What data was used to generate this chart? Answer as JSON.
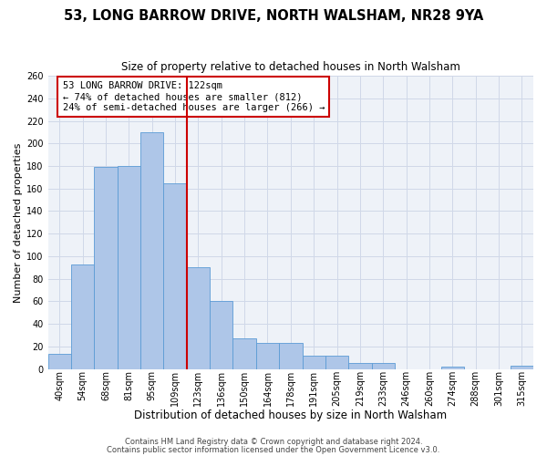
{
  "title": "53, LONG BARROW DRIVE, NORTH WALSHAM, NR28 9YA",
  "subtitle": "Size of property relative to detached houses in North Walsham",
  "xlabel": "Distribution of detached houses by size in North Walsham",
  "ylabel": "Number of detached properties",
  "bin_labels": [
    "40sqm",
    "54sqm",
    "68sqm",
    "81sqm",
    "95sqm",
    "109sqm",
    "123sqm",
    "136sqm",
    "150sqm",
    "164sqm",
    "178sqm",
    "191sqm",
    "205sqm",
    "219sqm",
    "233sqm",
    "246sqm",
    "260sqm",
    "274sqm",
    "288sqm",
    "301sqm",
    "315sqm"
  ],
  "bar_heights": [
    13,
    93,
    179,
    180,
    210,
    165,
    90,
    60,
    27,
    23,
    23,
    12,
    12,
    5,
    5,
    0,
    0,
    2,
    0,
    0,
    3
  ],
  "bar_color": "#aec6e8",
  "bar_edgecolor": "#5b9bd5",
  "grid_color": "#d0d8e8",
  "background_color": "#eef2f8",
  "vline_x": 6,
  "vline_color": "#cc0000",
  "annotation_text": "53 LONG BARROW DRIVE: 122sqm\n← 74% of detached houses are smaller (812)\n24% of semi-detached houses are larger (266) →",
  "annotation_box_edgecolor": "#cc0000",
  "ylim": [
    0,
    260
  ],
  "yticks": [
    0,
    20,
    40,
    60,
    80,
    100,
    120,
    140,
    160,
    180,
    200,
    220,
    240,
    260
  ],
  "footer1": "Contains HM Land Registry data © Crown copyright and database right 2024.",
  "footer2": "Contains public sector information licensed under the Open Government Licence v3.0.",
  "title_fontsize": 10.5,
  "subtitle_fontsize": 8.5,
  "xlabel_fontsize": 8.5,
  "ylabel_fontsize": 8,
  "tick_fontsize": 7,
  "annotation_fontsize": 7.5,
  "footer_fontsize": 6
}
